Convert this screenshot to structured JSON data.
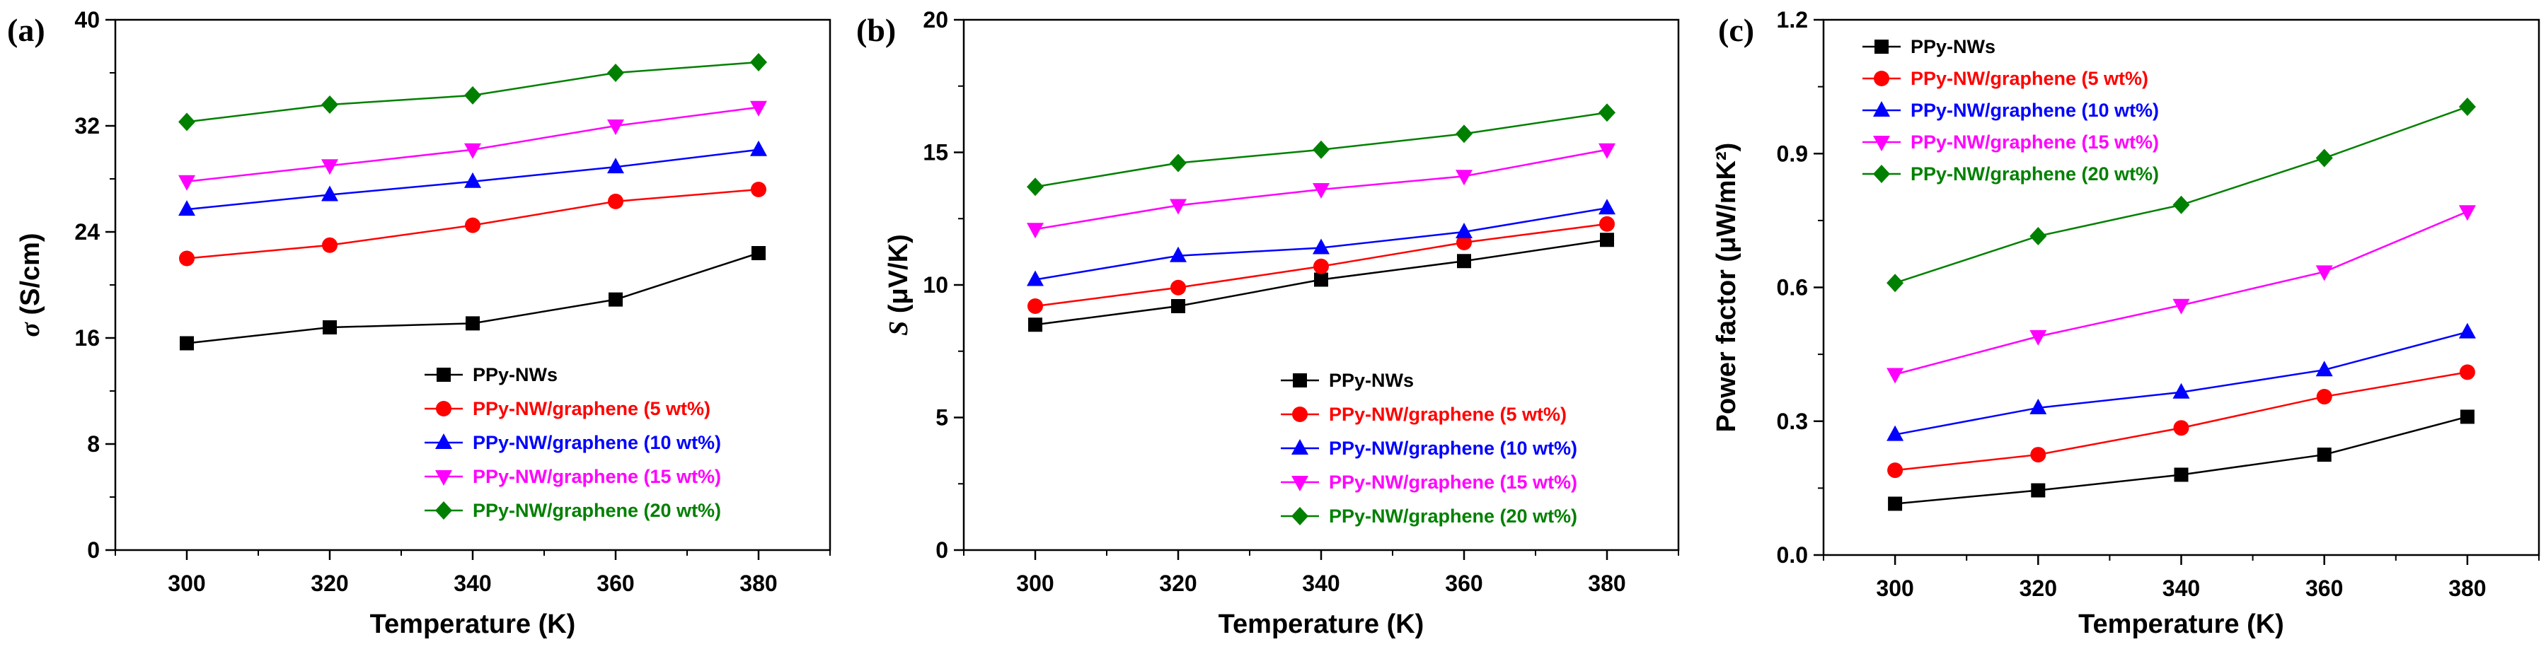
{
  "chart_data": [
    {
      "type": "line",
      "panel_label": "(a)",
      "title": "",
      "xlabel": "Temperature (K)",
      "ylabel_symbol": "σ",
      "ylabel": "(S/cm)",
      "xlim": [
        290,
        390
      ],
      "ylim": [
        0,
        40
      ],
      "x_ticks": [
        300,
        320,
        340,
        360,
        380
      ],
      "y_ticks": [
        0,
        8,
        16,
        24,
        32,
        40
      ],
      "legend_position": "lower-right",
      "series": [
        {
          "name": "PPy-NWs",
          "color": "#000000",
          "marker": "square",
          "x": [
            300,
            320,
            340,
            360,
            380
          ],
          "y": [
            15.6,
            16.8,
            17.1,
            18.9,
            22.4
          ]
        },
        {
          "name": "PPy-NW/graphene (5 wt%)",
          "color": "#ff0000",
          "marker": "circle",
          "x": [
            300,
            320,
            340,
            360,
            380
          ],
          "y": [
            22.0,
            23.0,
            24.5,
            26.3,
            27.2
          ]
        },
        {
          "name": "PPy-NW/graphene (10 wt%)",
          "color": "#0000ff",
          "marker": "triangle-up",
          "x": [
            300,
            320,
            340,
            360,
            380
          ],
          "y": [
            25.7,
            26.8,
            27.8,
            28.9,
            30.2
          ]
        },
        {
          "name": "PPy-NW/graphene (15 wt%)",
          "color": "#ff00ff",
          "marker": "triangle-down",
          "x": [
            300,
            320,
            340,
            360,
            380
          ],
          "y": [
            27.8,
            29.0,
            30.2,
            32.0,
            33.4
          ]
        },
        {
          "name": "PPy-NW/graphene (20 wt%)",
          "color": "#008000",
          "marker": "diamond",
          "x": [
            300,
            320,
            340,
            360,
            380
          ],
          "y": [
            32.3,
            33.6,
            34.3,
            36.0,
            36.8
          ]
        }
      ]
    },
    {
      "type": "line",
      "panel_label": "(b)",
      "title": "",
      "xlabel": "Temperature (K)",
      "ylabel_symbol": "S",
      "ylabel": "(μV/K)",
      "xlim": [
        290,
        390
      ],
      "ylim": [
        0,
        20
      ],
      "x_ticks": [
        300,
        320,
        340,
        360,
        380
      ],
      "y_ticks": [
        0,
        5,
        10,
        15,
        20
      ],
      "legend_position": "lower-right",
      "series": [
        {
          "name": "PPy-NWs",
          "color": "#000000",
          "marker": "square",
          "x": [
            300,
            320,
            340,
            360,
            380
          ],
          "y": [
            8.5,
            9.2,
            10.2,
            10.9,
            11.7
          ]
        },
        {
          "name": "PPy-NW/graphene (5 wt%)",
          "color": "#ff0000",
          "marker": "circle",
          "x": [
            300,
            320,
            340,
            360,
            380
          ],
          "y": [
            9.2,
            9.9,
            10.7,
            11.6,
            12.3
          ]
        },
        {
          "name": "PPy-NW/graphene (10 wt%)",
          "color": "#0000ff",
          "marker": "triangle-up",
          "x": [
            300,
            320,
            340,
            360,
            380
          ],
          "y": [
            10.2,
            11.1,
            11.4,
            12.0,
            12.9
          ]
        },
        {
          "name": "PPy-NW/graphene (15 wt%)",
          "color": "#ff00ff",
          "marker": "triangle-down",
          "x": [
            300,
            320,
            340,
            360,
            380
          ],
          "y": [
            12.1,
            13.0,
            13.6,
            14.1,
            15.1
          ]
        },
        {
          "name": "PPy-NW/graphene (20 wt%)",
          "color": "#008000",
          "marker": "diamond",
          "x": [
            300,
            320,
            340,
            360,
            380
          ],
          "y": [
            13.7,
            14.6,
            15.1,
            15.7,
            16.5
          ]
        }
      ]
    },
    {
      "type": "line",
      "panel_label": "(c)",
      "title": "",
      "xlabel": "Temperature (K)",
      "ylabel_symbol": "",
      "ylabel": "Power factor (μW/mK²)",
      "xlim": [
        290,
        390
      ],
      "ylim": [
        0,
        1.2
      ],
      "x_ticks": [
        300,
        320,
        340,
        360,
        380
      ],
      "y_ticks": [
        "0.0",
        "0.3",
        "0.6",
        "0.9",
        "1.2"
      ],
      "legend_position": "upper-left",
      "series": [
        {
          "name": "PPy-NWs",
          "color": "#000000",
          "marker": "square",
          "x": [
            300,
            320,
            340,
            360,
            380
          ],
          "y": [
            0.115,
            0.145,
            0.18,
            0.225,
            0.31
          ]
        },
        {
          "name": "PPy-NW/graphene (5 wt%)",
          "color": "#ff0000",
          "marker": "circle",
          "x": [
            300,
            320,
            340,
            360,
            380
          ],
          "y": [
            0.19,
            0.225,
            0.285,
            0.355,
            0.41
          ]
        },
        {
          "name": "PPy-NW/graphene (10 wt%)",
          "color": "#0000ff",
          "marker": "triangle-up",
          "x": [
            300,
            320,
            340,
            360,
            380
          ],
          "y": [
            0.27,
            0.33,
            0.365,
            0.415,
            0.5
          ]
        },
        {
          "name": "PPy-NW/graphene (15 wt%)",
          "color": "#ff00ff",
          "marker": "triangle-down",
          "x": [
            300,
            320,
            340,
            360,
            380
          ],
          "y": [
            0.405,
            0.49,
            0.56,
            0.635,
            0.77
          ]
        },
        {
          "name": "PPy-NW/graphene (20 wt%)",
          "color": "#008000",
          "marker": "diamond",
          "x": [
            300,
            320,
            340,
            360,
            380
          ],
          "y": [
            0.61,
            0.715,
            0.785,
            0.89,
            1.005
          ]
        }
      ]
    }
  ]
}
